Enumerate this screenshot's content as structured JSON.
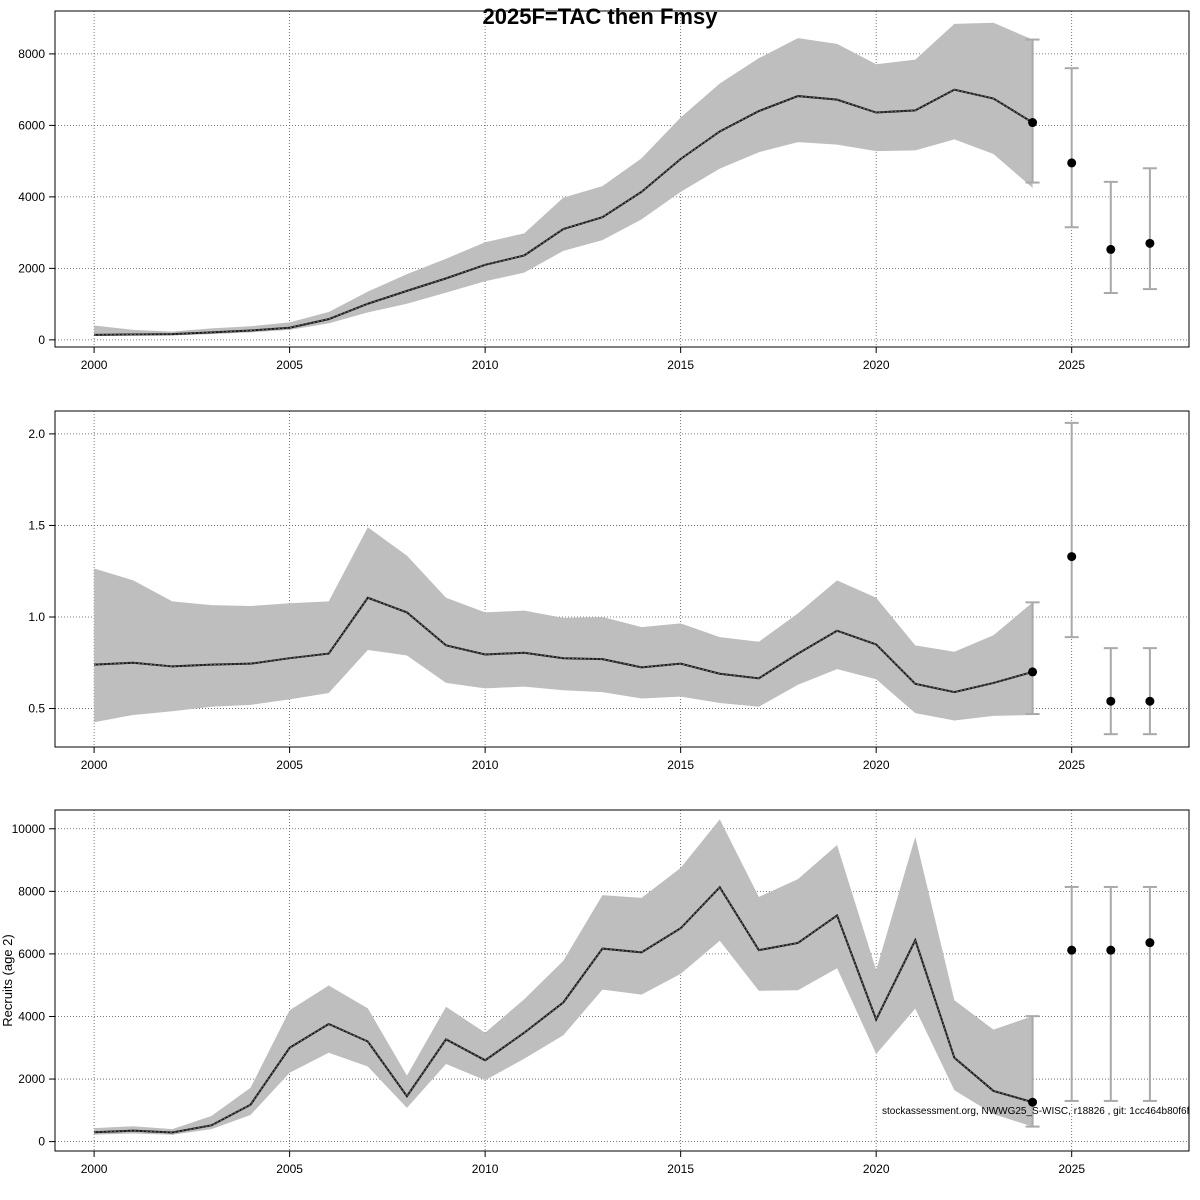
{
  "title": "2025F=TAC then Fmsy",
  "footnote": "stockassessment.org, NWWG25_S-WISC, r18826 , git: 1cc464b80f6f",
  "colors": {
    "band": "#bebebe",
    "line": "#1a1a1a",
    "point": "#000000",
    "errorbar": "#a9a9a9",
    "grid": "#555555"
  },
  "chart_data": [
    {
      "type": "line",
      "panel": "ssb",
      "xlabel": "",
      "ylabel": "",
      "xlim": [
        1999.0,
        2028.0
      ],
      "ylim": [
        -200,
        9200
      ],
      "x_ticks": [
        2000,
        2005,
        2010,
        2015,
        2020,
        2025
      ],
      "y_ticks": [
        0,
        2000,
        4000,
        6000,
        8000
      ],
      "grid": true,
      "x": [
        2000,
        2001,
        2002,
        2003,
        2004,
        2005,
        2006,
        2007,
        2008,
        2009,
        2010,
        2011,
        2012,
        2013,
        2014,
        2015,
        2016,
        2017,
        2018,
        2019,
        2020,
        2021,
        2022,
        2023,
        2024
      ],
      "estimate": [
        140,
        150,
        160,
        210,
        260,
        340,
        580,
        1010,
        1370,
        1720,
        2100,
        2360,
        3100,
        3430,
        4140,
        5060,
        5830,
        6400,
        6820,
        6720,
        6360,
        6420,
        7000,
        6750,
        6080
      ],
      "lower": [
        110,
        120,
        120,
        160,
        210,
        280,
        460,
        770,
        1010,
        1320,
        1640,
        1880,
        2490,
        2790,
        3370,
        4140,
        4790,
        5250,
        5530,
        5460,
        5280,
        5300,
        5610,
        5200,
        4250
      ],
      "upper": [
        400,
        280,
        230,
        320,
        380,
        490,
        780,
        1350,
        1840,
        2270,
        2730,
        2980,
        3980,
        4300,
        5080,
        6220,
        7170,
        7880,
        8440,
        8280,
        7710,
        7840,
        8840,
        8870,
        8400
      ],
      "forecast": {
        "x": [
          2024,
          2025,
          2026,
          2027
        ],
        "values": [
          6080,
          4950,
          2530,
          2700
        ],
        "lower": [
          4400,
          3150,
          1310,
          1420
        ],
        "upper": [
          8400,
          7600,
          4420,
          4800
        ]
      }
    },
    {
      "type": "line",
      "panel": "fishing-mortality",
      "xlabel": "",
      "ylabel": "",
      "xlim": [
        1999.0,
        2028.0
      ],
      "ylim": [
        0.29,
        2.125
      ],
      "x_ticks": [
        2000,
        2005,
        2010,
        2015,
        2020,
        2025
      ],
      "y_ticks": [
        0.5,
        1.0,
        1.5,
        2.0
      ],
      "grid": true,
      "x": [
        2000,
        2001,
        2002,
        2003,
        2004,
        2005,
        2006,
        2007,
        2008,
        2009,
        2010,
        2011,
        2012,
        2013,
        2014,
        2015,
        2016,
        2017,
        2018,
        2019,
        2020,
        2021,
        2022,
        2023,
        2024
      ],
      "estimate": [
        0.74,
        0.75,
        0.73,
        0.74,
        0.745,
        0.775,
        0.8,
        1.105,
        1.025,
        0.845,
        0.795,
        0.805,
        0.775,
        0.77,
        0.725,
        0.745,
        0.69,
        0.665,
        0.8,
        0.925,
        0.85,
        0.635,
        0.59,
        0.64,
        0.7
      ],
      "lower": [
        0.425,
        0.465,
        0.485,
        0.51,
        0.52,
        0.55,
        0.585,
        0.82,
        0.79,
        0.64,
        0.61,
        0.62,
        0.6,
        0.59,
        0.555,
        0.565,
        0.53,
        0.51,
        0.63,
        0.715,
        0.66,
        0.475,
        0.435,
        0.46,
        0.465
      ],
      "upper": [
        1.265,
        1.2,
        1.085,
        1.065,
        1.06,
        1.075,
        1.085,
        1.49,
        1.335,
        1.105,
        1.025,
        1.035,
        0.995,
        1.0,
        0.945,
        0.965,
        0.89,
        0.865,
        1.02,
        1.2,
        1.105,
        0.845,
        0.81,
        0.9,
        1.08
      ],
      "forecast": {
        "x": [
          2024,
          2025,
          2026,
          2027
        ],
        "values": [
          0.7,
          1.33,
          0.54,
          0.54
        ],
        "lower": [
          0.47,
          0.89,
          0.36,
          0.36
        ],
        "upper": [
          1.08,
          2.06,
          0.83,
          0.83
        ]
      }
    },
    {
      "type": "line",
      "panel": "recruits",
      "xlabel": "",
      "ylabel": "Recruits (age 2)",
      "xlim": [
        1999.0,
        2028.0
      ],
      "ylim": [
        -300,
        10600
      ],
      "x_ticks": [
        2000,
        2005,
        2010,
        2015,
        2020,
        2025
      ],
      "y_ticks": [
        0,
        2000,
        4000,
        6000,
        8000,
        10000
      ],
      "grid": true,
      "x": [
        2000,
        2001,
        2002,
        2003,
        2004,
        2005,
        2006,
        2007,
        2008,
        2009,
        2010,
        2011,
        2012,
        2013,
        2014,
        2015,
        2016,
        2017,
        2018,
        2019,
        2020,
        2021,
        2022,
        2023,
        2024
      ],
      "estimate": [
        300,
        350,
        290,
        520,
        1180,
        3000,
        3760,
        3200,
        1450,
        3270,
        2600,
        3480,
        4450,
        6170,
        6050,
        6820,
        8130,
        6120,
        6350,
        7230,
        3900,
        6440,
        2680,
        1620,
        1260
      ],
      "lower": [
        220,
        260,
        220,
        400,
        850,
        2200,
        2840,
        2400,
        1080,
        2480,
        1960,
        2650,
        3400,
        4860,
        4700,
        5360,
        6420,
        4820,
        4840,
        5540,
        2800,
        4250,
        1640,
        880,
        480
      ],
      "upper": [
        430,
        490,
        400,
        820,
        1720,
        4200,
        4990,
        4260,
        2110,
        4310,
        3480,
        4550,
        5780,
        7880,
        7790,
        8750,
        10300,
        7820,
        8390,
        9480,
        5480,
        9740,
        4520,
        3580,
        4010
      ],
      "forecast": {
        "x": [
          2024,
          2025,
          2026,
          2027
        ],
        "values": [
          1260,
          6120,
          6120,
          6360
        ],
        "lower": [
          480,
          1300,
          1300,
          1300
        ],
        "upper": [
          4010,
          8140,
          8140,
          8140
        ]
      }
    }
  ]
}
